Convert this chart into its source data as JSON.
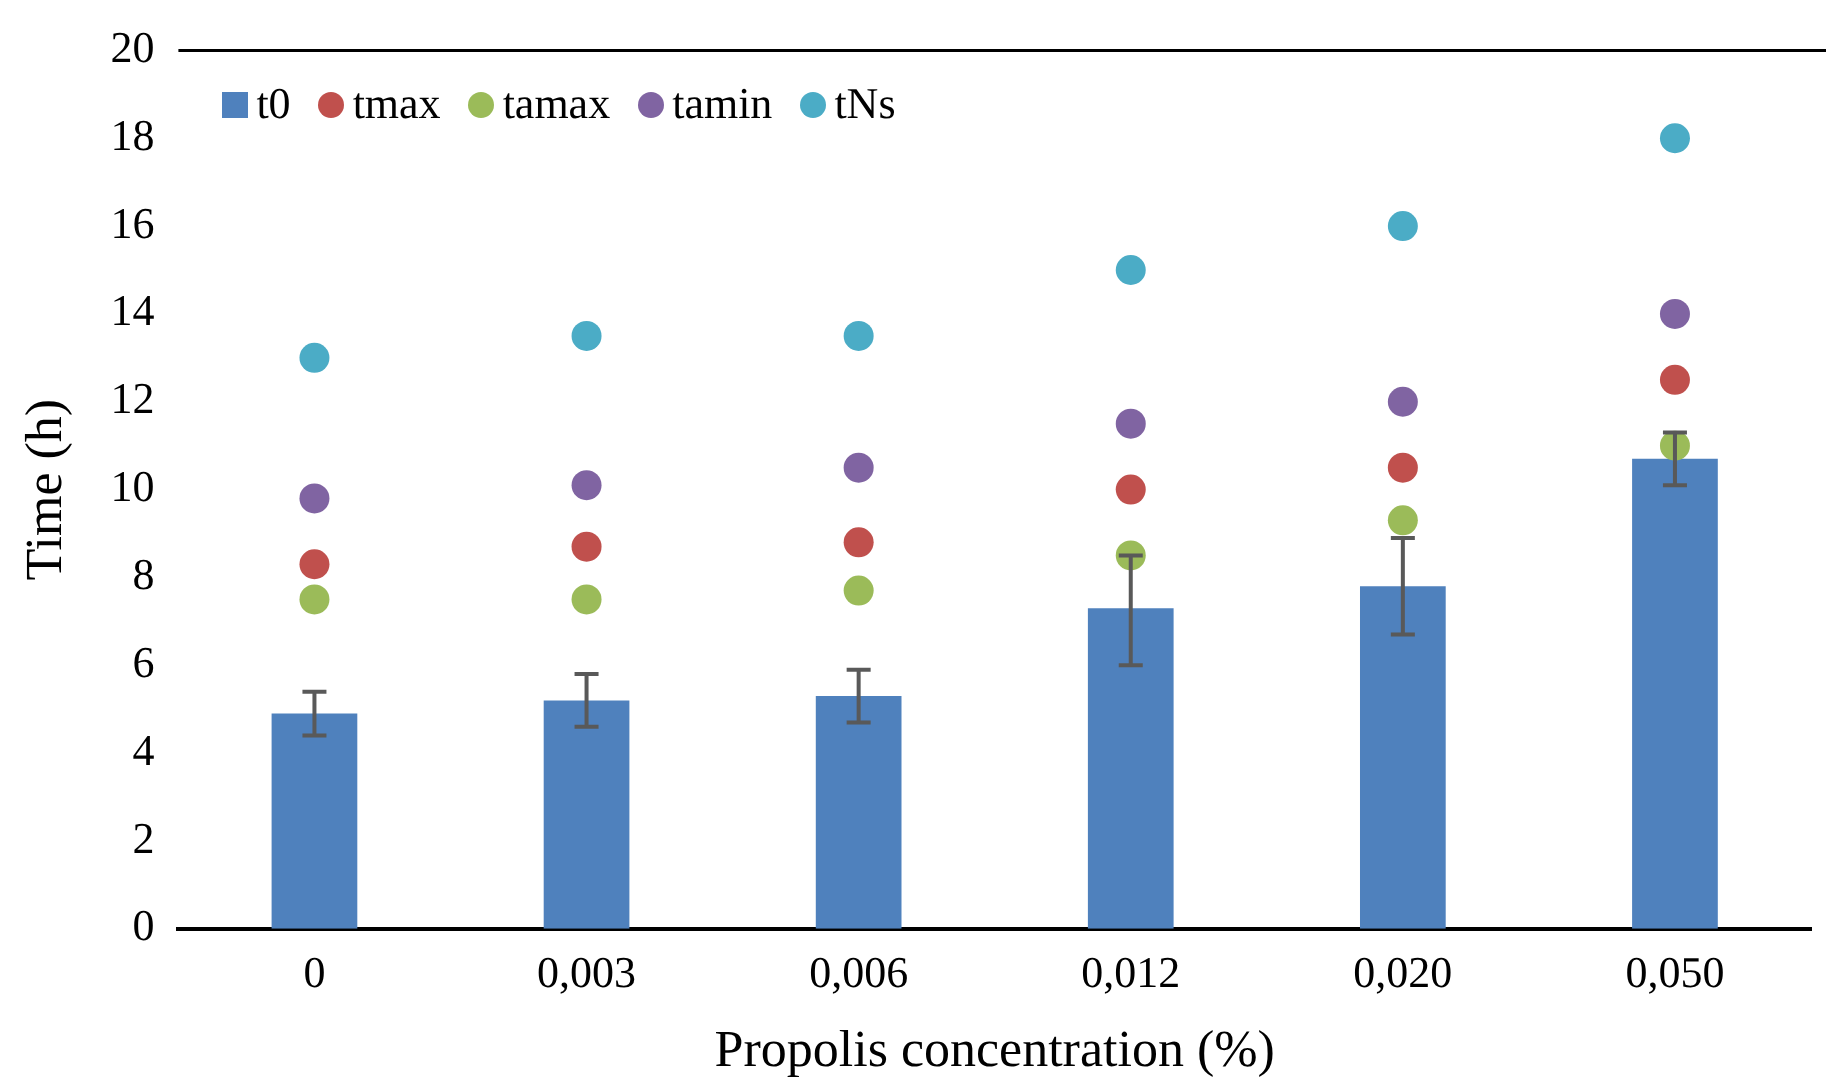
{
  "chart_data": {
    "type": "bar",
    "xlabel": "Propolis concentration (%)",
    "ylabel": "Time (h)",
    "categories": [
      "0",
      "0,003",
      "0,006",
      "0,012",
      "0,020",
      "0,050"
    ],
    "series": [
      {
        "name": "t0",
        "type": "bar",
        "color": "#4f81bd",
        "values": [
          4.9,
          5.2,
          5.3,
          7.3,
          7.8,
          10.7
        ],
        "errors": [
          [
            4.4,
            5.4
          ],
          [
            4.6,
            5.8
          ],
          [
            4.7,
            5.9
          ],
          [
            6.0,
            8.5
          ],
          [
            6.7,
            8.9
          ],
          [
            10.1,
            11.3
          ]
        ]
      },
      {
        "name": "tmax",
        "type": "scatter",
        "color": "#c0504d",
        "x": [
          "0",
          "0,003",
          "0,006",
          "0,012",
          "0,020",
          "0,050"
        ],
        "values": [
          8.3,
          8.7,
          8.8,
          10.0,
          10.5,
          12.5
        ]
      },
      {
        "name": "tamax",
        "type": "scatter",
        "color": "#9bbb59",
        "x": [
          "0",
          "0,003",
          "0,006",
          "0,012",
          "0,020",
          "0,050"
        ],
        "values": [
          7.5,
          7.5,
          7.7,
          8.5,
          9.3,
          11.0
        ]
      },
      {
        "name": "tamin",
        "type": "scatter",
        "color": "#8064a2",
        "x": [
          "0",
          "0,003",
          "0,006",
          "0,012",
          "0,020",
          "0,050"
        ],
        "values": [
          9.8,
          10.1,
          10.5,
          11.5,
          12.0,
          14.0
        ]
      },
      {
        "name": "tNs",
        "type": "scatter",
        "color": "#4bacc6",
        "x": [
          "0",
          "0,003",
          "0,006",
          "0,012",
          "0,020",
          "0,050"
        ],
        "values": [
          13.0,
          13.5,
          13.5,
          15.0,
          16.0,
          18.0
        ]
      }
    ],
    "ylim": [
      0,
      20
    ],
    "yticks": [
      0,
      2,
      4,
      6,
      8,
      10,
      12,
      14,
      16,
      18,
      20
    ],
    "grid": false,
    "legend": "top left",
    "marker": "circle"
  }
}
